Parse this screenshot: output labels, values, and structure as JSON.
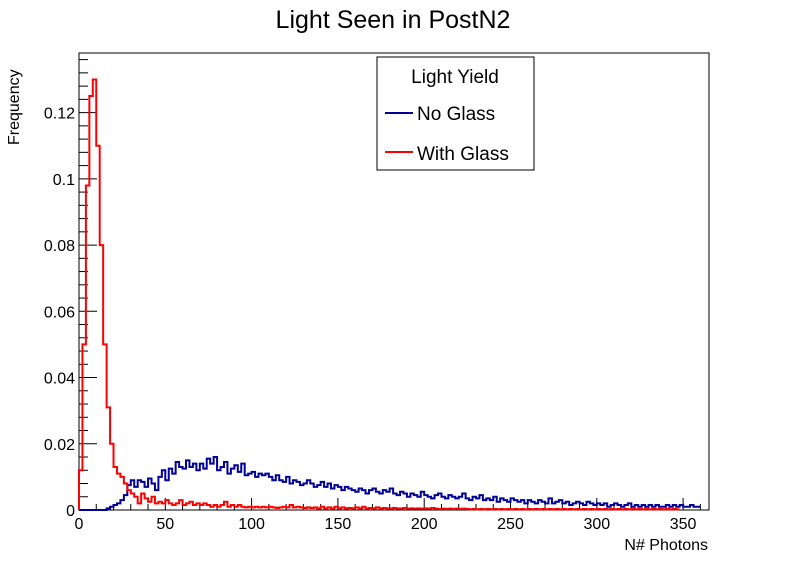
{
  "chart_data": {
    "type": "line",
    "subtype": "step-histogram",
    "title": "Light Seen in PostN2",
    "xlabel": "N# Photons",
    "ylabel": "Frequency",
    "xlim": [
      0,
      365
    ],
    "ylim": [
      0,
      0.138
    ],
    "bin_width": 2,
    "x_ticks": [
      0,
      50,
      100,
      150,
      200,
      250,
      300,
      350
    ],
    "y_ticks": [
      0,
      0.02,
      0.04,
      0.06,
      0.08,
      0.1,
      0.12
    ],
    "grid": false,
    "legend": {
      "title": "Light Yield",
      "placement": "top-center"
    },
    "series": [
      {
        "name": "No Glass",
        "color": "#000099",
        "values": [
          0.0,
          0.0,
          0.0,
          0.0,
          0.0,
          0.0,
          0.0,
          0.0,
          0.0005,
          0.001,
          0.0015,
          0.002,
          0.003,
          0.0045,
          0.0075,
          0.009,
          0.007,
          0.009,
          0.0085,
          0.007,
          0.0095,
          0.008,
          0.006,
          0.01,
          0.012,
          0.009,
          0.0125,
          0.011,
          0.0145,
          0.013,
          0.0125,
          0.015,
          0.013,
          0.014,
          0.012,
          0.014,
          0.0125,
          0.0155,
          0.014,
          0.016,
          0.012,
          0.013,
          0.0145,
          0.011,
          0.0125,
          0.0135,
          0.0115,
          0.014,
          0.0105,
          0.011,
          0.0115,
          0.01,
          0.011,
          0.0105,
          0.011,
          0.01,
          0.009,
          0.0105,
          0.009,
          0.0085,
          0.01,
          0.008,
          0.009,
          0.0085,
          0.0075,
          0.008,
          0.009,
          0.008,
          0.007,
          0.0075,
          0.0085,
          0.007,
          0.008,
          0.0065,
          0.0075,
          0.007,
          0.006,
          0.007,
          0.0065,
          0.006,
          0.0055,
          0.0065,
          0.006,
          0.005,
          0.006,
          0.0065,
          0.0055,
          0.005,
          0.006,
          0.0055,
          0.0065,
          0.005,
          0.0045,
          0.0055,
          0.005,
          0.004,
          0.005,
          0.0045,
          0.004,
          0.0055,
          0.0045,
          0.004,
          0.0035,
          0.0045,
          0.005,
          0.004,
          0.0035,
          0.0045,
          0.004,
          0.0035,
          0.004,
          0.005,
          0.0035,
          0.003,
          0.004,
          0.0035,
          0.0045,
          0.003,
          0.0035,
          0.003,
          0.004,
          0.0025,
          0.0035,
          0.003,
          0.0025,
          0.0035,
          0.003,
          0.0025,
          0.003,
          0.002,
          0.003,
          0.0025,
          0.002,
          0.003,
          0.0025,
          0.002,
          0.0035,
          0.002,
          0.0025,
          0.003,
          0.002,
          0.0025,
          0.0015,
          0.002,
          0.0025,
          0.002,
          0.0015,
          0.0025,
          0.002,
          0.0015,
          0.002,
          0.0015,
          0.002,
          0.001,
          0.0015,
          0.002,
          0.0015,
          0.001,
          0.0015,
          0.002,
          0.001,
          0.0015,
          0.001,
          0.0015,
          0.001,
          0.0015,
          0.001,
          0.0015,
          0.001,
          0.001,
          0.0015,
          0.001,
          0.0015,
          0.001,
          0.0015,
          0.001,
          0.001,
          0.0015,
          0.001,
          0.001
        ]
      },
      {
        "name": "With Glass",
        "color": "#ff0000",
        "values": [
          0.012,
          0.05,
          0.098,
          0.125,
          0.13,
          0.11,
          0.08,
          0.05,
          0.031,
          0.02,
          0.013,
          0.011,
          0.01,
          0.008,
          0.006,
          0.005,
          0.004,
          0.002,
          0.005,
          0.0035,
          0.0025,
          0.004,
          0.002,
          0.0025,
          0.002,
          0.003,
          0.002,
          0.0015,
          0.002,
          0.003,
          0.0015,
          0.002,
          0.0025,
          0.0015,
          0.002,
          0.0015,
          0.002,
          0.0015,
          0.001,
          0.0015,
          0.001,
          0.0015,
          0.0025,
          0.001,
          0.0015,
          0.001,
          0.0015,
          0.001,
          0.0008,
          0.001,
          0.0008,
          0.001,
          0.0008,
          0.001,
          0.0008,
          0.001,
          0.0008,
          0.0006,
          0.0008,
          0.001,
          0.0008,
          0.0015,
          0.0008,
          0.001,
          0.0008,
          0.0006,
          0.0008,
          0.0006,
          0.0008,
          0.0005,
          0.001,
          0.0005,
          0.0008,
          0.0005,
          0.001,
          0.0005,
          0.0008,
          0.0005,
          0.0006,
          0.0005,
          0.0008,
          0.0005,
          0.001,
          0.0005,
          0.0006,
          0.0005,
          0.0008,
          0.0005,
          0.0006,
          0.0005,
          0.0005,
          0.0006,
          0.0004,
          0.0005,
          0.0006,
          0.0004,
          0.0005,
          0.0004,
          0.0005,
          0.0004,
          0.0005,
          0.0004,
          0.0006,
          0.0004,
          0.0003,
          0.0004,
          0.0003,
          0.0004,
          0.0003,
          0.0004,
          0.0003,
          0.0004,
          0.0003,
          0.0002,
          0.0003,
          0.0002,
          0.0003,
          0.0002,
          0.0003,
          0.0002,
          0.0003,
          0.0002,
          0.0003,
          0.0002,
          0.0003,
          0.0002,
          0.0003,
          0.0002,
          0.0003,
          0.0002,
          0.0003,
          0.0002,
          0.0003,
          0.0002,
          0.0003,
          0.0002,
          0.0003,
          0.0002,
          0.0003,
          0.0002,
          0.0003,
          0.0002,
          0.0003,
          0.0002,
          0.0003,
          0.0002,
          0.0003,
          0.0002,
          0.0003,
          0.0002,
          0.0003,
          0.0002,
          0.0003,
          0.0002,
          0.0003,
          0.0002,
          0.0003,
          0.0002,
          0.0003,
          0.0002,
          0.0003,
          0.0002,
          0.0003,
          0.0002,
          0.0003,
          0.0002,
          0.0003,
          0.0002,
          0.0003,
          0.0002,
          0.0003,
          0.0002,
          0.0003,
          0.0002
        ]
      }
    ]
  }
}
